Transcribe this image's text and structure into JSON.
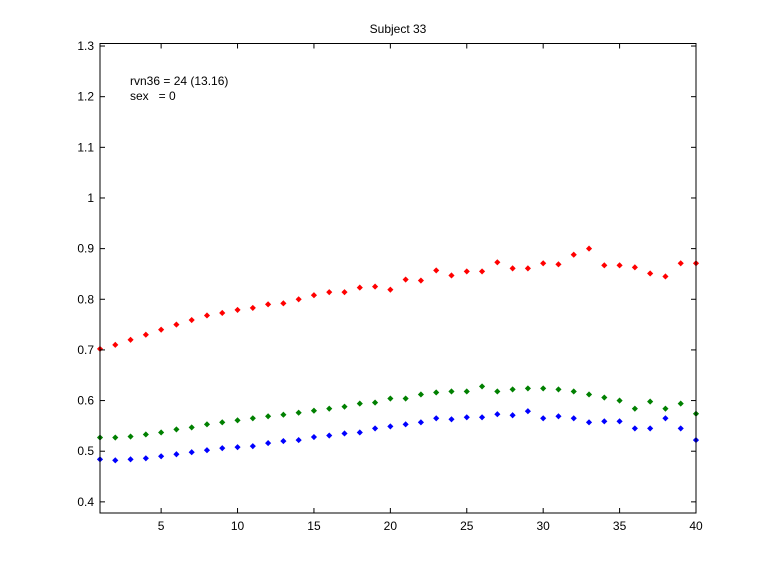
{
  "chart_data": {
    "type": "scatter",
    "title": "Subject 33",
    "xlabel": "",
    "ylabel": "",
    "xlim": [
      1,
      40
    ],
    "ylim": [
      0.378,
      1.305
    ],
    "xticks": [
      5,
      10,
      15,
      20,
      25,
      30,
      35,
      40
    ],
    "xtick_labels": [
      "5",
      "10",
      "15",
      "20",
      "25",
      "30",
      "35",
      "40"
    ],
    "yticks": [
      0.4,
      0.5,
      0.6,
      0.7,
      0.8,
      0.9,
      1.0,
      1.1,
      1.2,
      1.3
    ],
    "ytick_labels": [
      "0.4",
      "0.5",
      "0.6",
      "0.7",
      "0.8",
      "0.9",
      "1",
      "1.1",
      "1.2",
      "1.3"
    ],
    "grid": false,
    "legend": null,
    "annotations": [
      {
        "text": "rvn36 = 24 (13.16)",
        "x": 2,
        "y": 1.22
      },
      {
        "text": "sex   = 0",
        "x": 2,
        "y": 1.19
      }
    ],
    "x": [
      1,
      2,
      3,
      4,
      5,
      6,
      7,
      8,
      9,
      10,
      11,
      12,
      13,
      14,
      15,
      16,
      17,
      18,
      19,
      20,
      21,
      22,
      23,
      24,
      25,
      26,
      27,
      28,
      29,
      30,
      31,
      32,
      33,
      34,
      35,
      36,
      37,
      38,
      39,
      40
    ],
    "series": [
      {
        "name": "red",
        "color": "#ff0000",
        "marker": "dot",
        "values": [
          0.702,
          0.71,
          0.72,
          0.73,
          0.74,
          0.75,
          0.759,
          0.768,
          0.773,
          0.779,
          0.783,
          0.79,
          0.792,
          0.8,
          0.808,
          0.814,
          0.814,
          0.823,
          0.825,
          0.819,
          0.839,
          0.837,
          0.857,
          0.847,
          0.855,
          0.855,
          0.873,
          0.861,
          0.861,
          0.871,
          0.869,
          0.888,
          0.9,
          0.867,
          0.867,
          0.863,
          0.851,
          0.845,
          0.871,
          0.871
        ]
      },
      {
        "name": "green",
        "color": "#008000",
        "marker": "dot",
        "values": [
          0.527,
          0.527,
          0.529,
          0.533,
          0.537,
          0.543,
          0.547,
          0.553,
          0.557,
          0.561,
          0.565,
          0.569,
          0.572,
          0.576,
          0.58,
          0.584,
          0.588,
          0.594,
          0.596,
          0.604,
          0.604,
          0.612,
          0.616,
          0.618,
          0.618,
          0.628,
          0.618,
          0.622,
          0.624,
          0.624,
          0.622,
          0.618,
          0.612,
          0.606,
          0.6,
          0.584,
          0.598,
          0.584,
          0.594,
          0.574
        ]
      },
      {
        "name": "blue",
        "color": "#0000ff",
        "marker": "dot",
        "values": [
          0.484,
          0.482,
          0.484,
          0.486,
          0.49,
          0.494,
          0.498,
          0.502,
          0.506,
          0.508,
          0.51,
          0.516,
          0.52,
          0.522,
          0.528,
          0.531,
          0.535,
          0.537,
          0.545,
          0.549,
          0.553,
          0.557,
          0.565,
          0.563,
          0.567,
          0.567,
          0.573,
          0.571,
          0.579,
          0.565,
          0.569,
          0.565,
          0.557,
          0.559,
          0.559,
          0.545,
          0.545,
          0.565,
          0.545,
          0.522
        ]
      }
    ]
  },
  "figure": {
    "background": "#ffffff",
    "axes_color": "#000000"
  }
}
